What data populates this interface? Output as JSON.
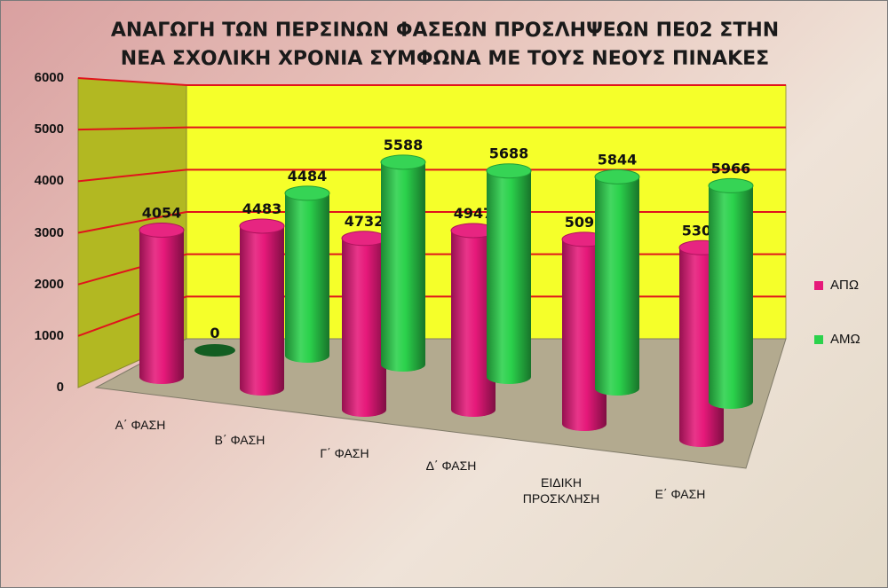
{
  "chart_data": {
    "type": "bar",
    "title": [
      "ΑΝΑΓΩΓΗ ΤΩΝ ΠΕΡΣΙΝΩΝ ΦΑΣΕΩΝ ΠΡΟΣΛΗΨΕΩΝ ΠΕ02 ΣΤΗΝ",
      "ΝΕΑ ΣΧΟΛΙΚΗ ΧΡΟΝΙΑ ΣΥΜΦΩΝΑ ΜΕ ΤΟΥΣ ΝΕΟΥΣ ΠΙΝΑΚΕΣ"
    ],
    "categories": [
      [
        "Α΄ ΦΑΣΗ"
      ],
      [
        "Β΄ ΦΑΣΗ"
      ],
      [
        "Γ΄ ΦΑΣΗ"
      ],
      [
        "Δ΄ ΦΑΣΗ"
      ],
      [
        "ΕΙΔΙΚΗ",
        "ΠΡΟΣΚΛΗΣΗ"
      ],
      [
        "Ε΄ ΦΑΣΗ"
      ]
    ],
    "series": [
      {
        "name": "ΑΠΩ",
        "color": "#e6197a",
        "values": [
          4054,
          4483,
          4732,
          4947,
          5096,
          5307
        ]
      },
      {
        "name": "ΑΜΩ",
        "color": "#2bd24c",
        "values": [
          0,
          4484,
          5588,
          5688,
          5844,
          5966
        ]
      }
    ],
    "yticks": [
      0,
      1000,
      2000,
      3000,
      4000,
      5000,
      6000
    ],
    "ylim": [
      0,
      6000
    ],
    "grid": true,
    "legend": "right",
    "wall_color": "#f5ff2a",
    "grid_color": "#e0141c"
  }
}
